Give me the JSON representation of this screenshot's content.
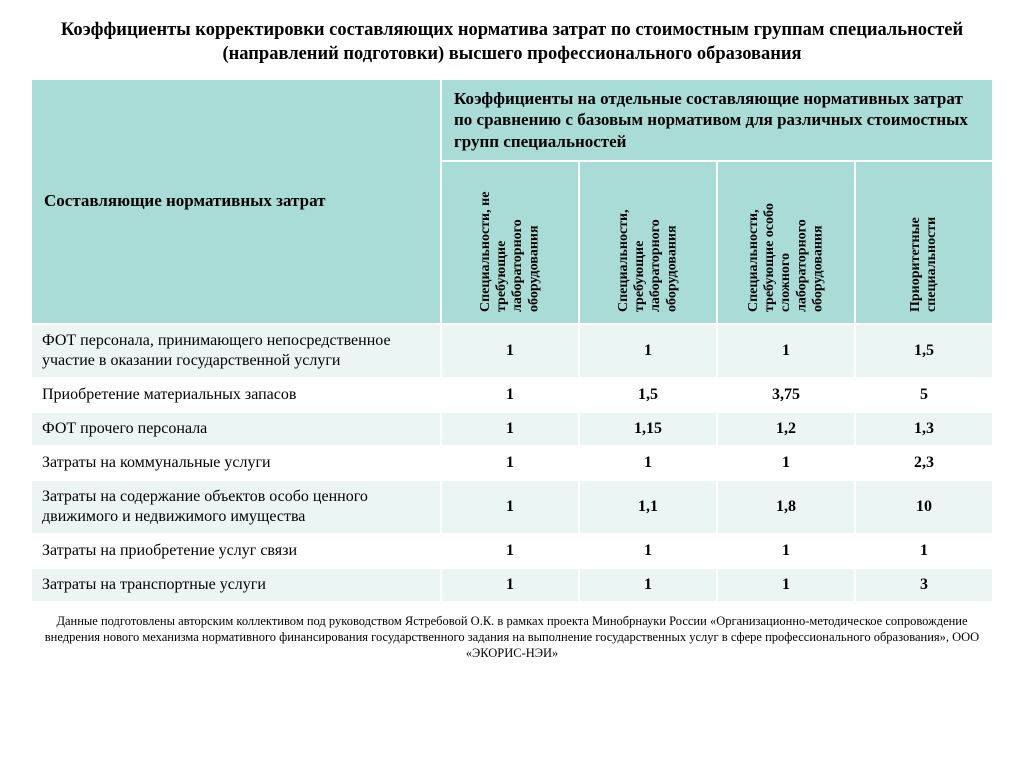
{
  "title": "Коэффициенты корректировки составляющих норматива затрат по стоимостным группам специальностей (направлений подготовки) высшего профессионального образования",
  "header_left": "Составляющие нормативных затрат",
  "header_top": "Коэффициенты на отдельные составляющие нормативных затрат по сравнению с базовым нормативом для различных стоимостных групп специальностей",
  "columns": [
    "Специальности, не требующие лабораторного оборудования",
    "Специальности, требующие лабораторного оборудования",
    "Специальности, требующие особо сложного лабораторного оборудования",
    "Приоритетные специальности"
  ],
  "rows": [
    {
      "label": "ФОТ персонала, принимающего непосредственное участие в оказании государственной услуги",
      "v": [
        "1",
        "1",
        "1",
        "1,5"
      ]
    },
    {
      "label": "Приобретение материальных запасов",
      "v": [
        "1",
        "1,5",
        "3,75",
        "5"
      ]
    },
    {
      "label": "ФОТ прочего персонала",
      "v": [
        "1",
        "1,15",
        "1,2",
        "1,3"
      ]
    },
    {
      "label": "Затраты на коммунальные услуги",
      "v": [
        "1",
        "1",
        "1",
        "2,3"
      ]
    },
    {
      "label": "Затраты на содержание объектов особо ценного движимого и недвижимого имущества",
      "v": [
        "1",
        "1,1",
        "1,8",
        "10"
      ]
    },
    {
      "label": "Затраты на приобретение услуг связи",
      "v": [
        "1",
        "1",
        "1",
        "1"
      ]
    },
    {
      "label": "Затраты на транспортные услуги",
      "v": [
        "1",
        "1",
        "1",
        "3"
      ]
    }
  ],
  "footnote": "Данные подготовлены авторским коллективом под руководством Ястребовой О.К. в рамках проекта Минобрнауки России «Организационно-методическое сопровождение внедрения нового механизма нормативного финансирования государственного задания на выполнение государственных услуг в сфере профессионального образования», ООО «ЭКОРИС-НЭИ»",
  "style": {
    "header_bg": "#a9dcd7",
    "row_odd_bg": "#eaf5f4",
    "row_even_bg": "#ffffff",
    "border_color": "#ffffff",
    "title_fontsize": 18.5,
    "header_fontsize": 17,
    "colhead_fontsize": 14,
    "cell_fontsize": 16,
    "footnote_fontsize": 12.5,
    "col_left_width": 410,
    "col_val_width": 135,
    "col_head_height": 160
  }
}
